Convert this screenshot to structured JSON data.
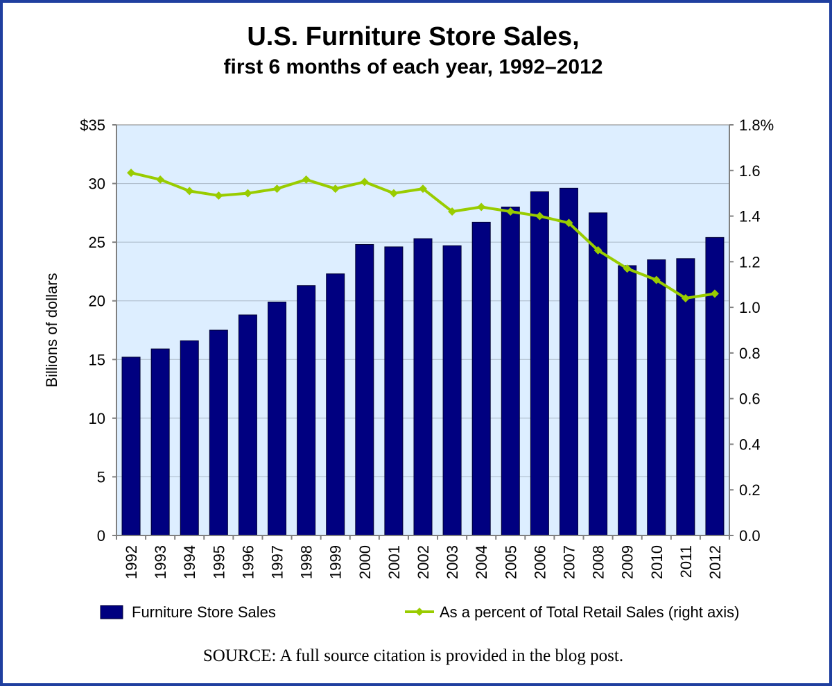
{
  "chart_data": {
    "type": "bar",
    "title": "U.S. Furniture Store Sales,",
    "subtitle": "first 6 months of each year, 1992–2012",
    "ylabel": "Billions of dollars",
    "y2label": "",
    "categories": [
      "1992",
      "1993",
      "1994",
      "1995",
      "1996",
      "1997",
      "1998",
      "1999",
      "2000",
      "2001",
      "2002",
      "2003",
      "2004",
      "2005",
      "2006",
      "2007",
      "2008",
      "2009",
      "2010",
      "2011",
      "2012"
    ],
    "ylim": [
      0,
      35
    ],
    "y2lim": [
      0,
      1.8
    ],
    "yticks": [
      {
        "value": 0,
        "label": "0"
      },
      {
        "value": 5,
        "label": "5"
      },
      {
        "value": 10,
        "label": "10"
      },
      {
        "value": 15,
        "label": "15"
      },
      {
        "value": 20,
        "label": "20"
      },
      {
        "value": 25,
        "label": "25"
      },
      {
        "value": 30,
        "label": "30"
      },
      {
        "value": 35,
        "label": "$35"
      }
    ],
    "y2ticks": [
      {
        "value": 0,
        "label": "0.0"
      },
      {
        "value": 0.2,
        "label": "0.2"
      },
      {
        "value": 0.4,
        "label": "0.4"
      },
      {
        "value": 0.6,
        "label": "0.6"
      },
      {
        "value": 0.8,
        "label": "0.8"
      },
      {
        "value": 1.0,
        "label": "1.0"
      },
      {
        "value": 1.2,
        "label": "1.2"
      },
      {
        "value": 1.4,
        "label": "1.4"
      },
      {
        "value": 1.6,
        "label": "1.6"
      },
      {
        "value": 1.8,
        "label": "1.8%"
      }
    ],
    "grid": true,
    "legend_position": "bottom",
    "series": [
      {
        "name": "Furniture Store Sales",
        "type": "bar",
        "axis": "left",
        "color": "#000080",
        "values": [
          15.2,
          15.9,
          16.6,
          17.5,
          18.8,
          19.9,
          21.3,
          22.3,
          24.8,
          24.6,
          25.3,
          24.7,
          26.7,
          28.0,
          29.3,
          29.6,
          27.5,
          23.0,
          23.5,
          23.6,
          25.4
        ]
      },
      {
        "name": "As a percent of Total Retail Sales (right axis)",
        "type": "line",
        "axis": "right",
        "color": "#99cc00",
        "values": [
          1.59,
          1.56,
          1.51,
          1.49,
          1.5,
          1.52,
          1.56,
          1.52,
          1.55,
          1.5,
          1.52,
          1.42,
          1.44,
          1.42,
          1.4,
          1.37,
          1.25,
          1.17,
          1.12,
          1.04,
          1.06
        ]
      }
    ],
    "source": "SOURCE: A full source citation is provided in the blog post."
  }
}
